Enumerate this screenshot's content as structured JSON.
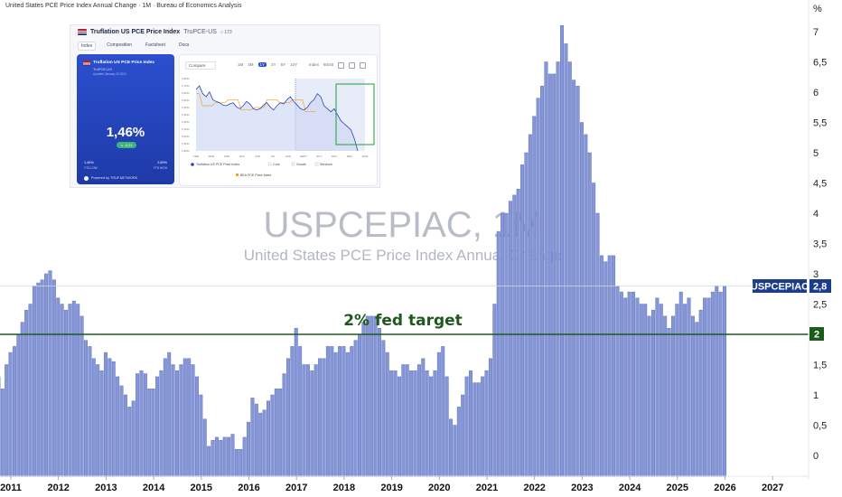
{
  "header": {
    "title": "United States PCE Price Index Annual Change · 1M · Bureau of Economics Analysis"
  },
  "watermark": {
    "symbol": "USPCEPIAC, 1M",
    "description": "United States PCE Price Index Annual Change"
  },
  "annotation": {
    "text": "2% fed target"
  },
  "labels": {
    "symbol_badge": "USPCEPIAC",
    "last_value": "2,8",
    "target_value": "2"
  },
  "colors": {
    "bar": "#8797d6",
    "bar_edge": "#5f74c4",
    "target_line": "#1a5c1a",
    "badge": "#1c3c8c"
  },
  "chart_data": {
    "type": "bar",
    "title": "United States PCE Price Index Annual Change",
    "xlabel": "",
    "ylabel": "%",
    "unit": "%",
    "frequency": "monthly",
    "start": "2010-09",
    "end": "2025-09",
    "ylim": [
      -0.5,
      7.5
    ],
    "yticks": [
      "0",
      "0,5",
      "1",
      "1,5",
      "2",
      "2,5",
      "3",
      "3,5",
      "4",
      "4,5",
      "5",
      "5,5",
      "6",
      "6,5",
      "7"
    ],
    "xticks": [
      "2011",
      "2012",
      "2013",
      "2014",
      "2015",
      "2016",
      "2017",
      "2018",
      "2019",
      "2020",
      "2021",
      "2022",
      "2023",
      "2024",
      "2025",
      "2026",
      "2027"
    ],
    "reference_lines": [
      {
        "label": "2% fed target",
        "value": 2.0
      }
    ],
    "series": [
      {
        "name": "USPCEPIAC",
        "values": [
          1.3,
          1.3,
          1.1,
          1.5,
          1.7,
          1.8,
          2.0,
          2.2,
          2.4,
          2.5,
          2.8,
          2.85,
          2.9,
          3.0,
          3.05,
          2.9,
          2.6,
          2.5,
          2.4,
          2.5,
          2.55,
          2.5,
          2.3,
          1.9,
          1.8,
          1.6,
          1.5,
          1.4,
          1.7,
          1.6,
          1.55,
          1.3,
          1.15,
          1.0,
          0.8,
          0.9,
          1.35,
          1.4,
          1.35,
          1.1,
          1.1,
          1.3,
          1.4,
          1.6,
          1.7,
          1.5,
          1.4,
          1.5,
          1.6,
          1.6,
          1.5,
          1.3,
          1.0,
          0.6,
          0.15,
          0.25,
          0.3,
          0.25,
          0.3,
          0.3,
          0.35,
          0.1,
          0.1,
          0.3,
          0.55,
          0.95,
          0.85,
          0.7,
          0.75,
          0.9,
          1.0,
          1.1,
          1.1,
          1.35,
          1.6,
          1.8,
          2.1,
          1.8,
          1.5,
          1.5,
          1.4,
          1.5,
          1.6,
          1.6,
          1.8,
          1.8,
          1.7,
          1.8,
          1.8,
          1.7,
          1.8,
          1.9,
          2.0,
          2.2,
          2.3,
          2.3,
          2.3,
          2.1,
          1.9,
          1.7,
          1.4,
          1.4,
          1.3,
          1.5,
          1.5,
          1.4,
          1.4,
          1.5,
          1.6,
          1.4,
          1.3,
          1.4,
          1.7,
          1.8,
          1.3,
          0.6,
          0.5,
          0.8,
          1.0,
          1.3,
          1.4,
          1.2,
          1.2,
          1.3,
          1.4,
          1.6,
          2.5,
          3.7,
          4.0,
          4.0,
          4.2,
          4.3,
          4.4,
          4.8,
          5.0,
          5.3,
          5.6,
          5.9,
          6.1,
          6.5,
          6.3,
          6.3,
          6.5,
          7.1,
          6.8,
          6.5,
          6.2,
          6.1,
          5.5,
          5.3,
          5.0,
          4.5,
          4.0,
          3.3,
          3.2,
          3.3,
          3.3,
          2.8,
          2.7,
          2.6,
          2.7,
          2.7,
          2.6,
          2.5,
          2.5,
          2.3,
          2.4,
          2.6,
          2.5,
          2.3,
          2.1,
          2.3,
          2.5,
          2.7,
          2.5,
          2.6,
          2.3,
          2.2,
          2.4,
          2.6,
          2.6,
          2.7,
          2.8,
          2.7,
          2.8
        ]
      }
    ]
  },
  "inset": {
    "title": "Truflation US PCE Price Index",
    "ticker": "TruPCE-US",
    "badge": "○ 173",
    "tabs": [
      "Index",
      "Composition",
      "Factsheet",
      "Docs"
    ],
    "card": {
      "title": "Truflation US PCE Price Index",
      "subtitle": "TruPCE-US",
      "updated": "Updated January 15 2024",
      "value": "1,46%",
      "delta": "↘ -0,21",
      "left_value": "1,46%",
      "left_label": "YTD LOW",
      "right_value": "2,89%",
      "right_label": "YTD HIGH",
      "powered": "Powered by TRUF.NETWORK"
    },
    "panel": {
      "compare": "Compare",
      "ranges": [
        "1M",
        "3M",
        "1Y",
        "2Y",
        "5Y",
        "10Y"
      ],
      "active_range": "1Y",
      "tools": [
        "Index",
        "60/40"
      ],
      "y_ticks": [
        "2,80%",
        "2,70%",
        "2,60%",
        "2,50%",
        "2,40%",
        "2,30%",
        "2,20%",
        "2,10%",
        "2,00%",
        "1,90%",
        "1,80%"
      ],
      "x_ticks": [
        "FEB",
        "MAR",
        "APR",
        "MAY",
        "JUN",
        "JUL",
        "AUG",
        "SEPT",
        "OCT",
        "NOV",
        "DEC",
        "2024"
      ],
      "legend": [
        "Truflation US PCE Price Index",
        "Core",
        "Goods",
        "Services",
        "BEA PCE Price Index"
      ],
      "truflation_series": [
        2.62,
        2.68,
        2.55,
        2.5,
        2.58,
        2.45,
        2.42,
        2.4,
        2.36,
        2.35,
        2.38,
        2.4,
        2.33,
        2.3,
        2.35,
        2.42,
        2.38,
        2.3,
        2.28,
        2.3,
        2.36,
        2.4,
        2.33,
        2.28,
        2.35,
        2.4,
        2.38,
        2.45,
        2.5,
        2.42,
        2.36,
        2.3,
        2.28,
        2.32,
        2.4,
        2.45,
        2.55,
        2.5,
        2.35,
        2.3,
        2.25,
        2.3,
        2.2,
        2.1,
        2.05,
        2.0,
        1.95,
        1.8,
        1.6
      ],
      "bea_series": [
        2.55,
        2.55,
        2.35,
        2.35,
        2.35,
        2.35,
        2.4,
        2.4,
        2.4,
        2.4,
        2.45,
        2.45,
        2.45,
        2.45,
        2.28,
        2.28,
        2.28,
        2.28,
        2.32,
        2.32,
        2.32,
        2.32,
        2.45,
        2.45,
        2.45,
        2.45,
        2.4,
        2.4,
        2.4,
        2.4,
        2.45,
        2.45,
        2.45,
        2.45,
        2.25,
        2.25,
        2.25,
        2.25
      ]
    }
  }
}
